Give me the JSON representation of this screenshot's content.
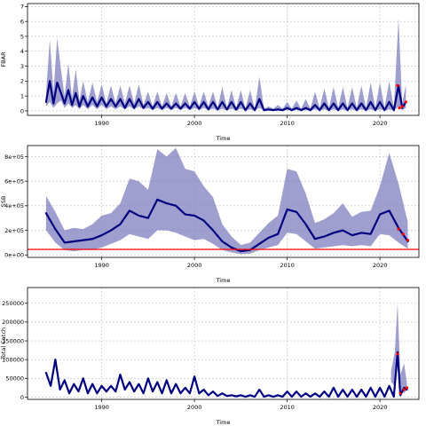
{
  "chart_data": [
    {
      "type": "area",
      "ylabel": "FBAR",
      "xlabel": "Time",
      "xlim": [
        1982.0,
        2024.2
      ],
      "ylim": [
        -0.3,
        7.2
      ],
      "x_ticks": [
        1990,
        2000,
        2010,
        2020
      ],
      "y_ticks": [
        0,
        1,
        2,
        3,
        4,
        5,
        6,
        7
      ],
      "y_tick_labels": [
        "0",
        "1",
        "2",
        "3",
        "4",
        "5",
        "6",
        "7"
      ],
      "grid": true,
      "reference_line": null,
      "series": [
        {
          "kind": "band",
          "color": "#7f7fbf",
          "x": [
            1984.0,
            1984.4,
            1984.8,
            1985.2,
            1985.6,
            1986.0,
            1986.4,
            1986.8,
            1987.2,
            1987.6,
            1988.0,
            1988.5,
            1989.0,
            1989.5,
            1990.0,
            1990.5,
            1991.0,
            1991.5,
            1992.0,
            1992.5,
            1993.0,
            1993.5,
            1994.0,
            1994.5,
            1995.0,
            1995.5,
            1996.0,
            1996.5,
            1997.0,
            1997.5,
            1998.0,
            1998.5,
            1999.0,
            1999.5,
            2000.0,
            2000.5,
            2001.0,
            2001.5,
            2002.0,
            2002.5,
            2003.0,
            2003.5,
            2004.0,
            2004.5,
            2005.0,
            2005.5,
            2006.0,
            2006.5,
            2007.0,
            2007.5,
            2008.0,
            2008.5,
            2009.0,
            2009.5,
            2010.0,
            2010.5,
            2011.0,
            2011.5,
            2012.0,
            2012.5,
            2013.0,
            2013.5,
            2014.0,
            2014.5,
            2015.0,
            2015.5,
            2016.0,
            2016.5,
            2017.0,
            2017.5,
            2018.0,
            2018.5,
            2019.0,
            2019.5,
            2020.0,
            2020.5,
            2021.0,
            2021.5,
            2022.0,
            2022.4,
            2022.8
          ],
          "lower": [
            0.3,
            0.6,
            0.2,
            0.5,
            0.7,
            0.2,
            0.5,
            0.2,
            0.4,
            0.1,
            0.4,
            0.1,
            0.4,
            0.1,
            0.4,
            0.1,
            0.3,
            0.1,
            0.3,
            0.1,
            0.3,
            0.1,
            0.3,
            0.1,
            0.2,
            0.05,
            0.2,
            0.05,
            0.2,
            0.05,
            0.2,
            0.05,
            0.2,
            0.05,
            0.2,
            0.05,
            0.2,
            0.05,
            0.15,
            0.03,
            0.15,
            0.03,
            0.15,
            0.03,
            0.15,
            0.03,
            0.1,
            0.02,
            0.2,
            0.02,
            0.02,
            0.02,
            0.03,
            0.02,
            0.05,
            0.02,
            0.05,
            0.02,
            0.05,
            0.02,
            0.1,
            0.02,
            0.1,
            0.02,
            0.1,
            0.02,
            0.1,
            0.02,
            0.1,
            0.02,
            0.1,
            0.02,
            0.1,
            0.02,
            0.1,
            0.02,
            0.1,
            0.02,
            0.3,
            0.05,
            0.2
          ],
          "upper": [
            1.2,
            4.8,
            1.3,
            4.9,
            2.8,
            1.0,
            3.2,
            0.9,
            2.8,
            0.7,
            2.0,
            0.6,
            1.9,
            0.6,
            1.8,
            0.5,
            1.7,
            0.5,
            1.7,
            0.5,
            1.7,
            0.5,
            1.8,
            0.4,
            1.3,
            0.3,
            1.3,
            0.3,
            1.2,
            0.3,
            1.2,
            0.3,
            1.2,
            0.3,
            1.3,
            0.3,
            1.3,
            0.3,
            1.3,
            0.2,
            1.6,
            0.2,
            1.4,
            0.2,
            1.4,
            0.15,
            1.4,
            0.15,
            2.3,
            0.15,
            0.3,
            0.15,
            0.4,
            0.15,
            0.6,
            0.15,
            0.7,
            0.15,
            0.8,
            0.15,
            1.3,
            0.2,
            1.5,
            0.2,
            1.6,
            0.2,
            1.6,
            0.2,
            1.6,
            0.2,
            1.7,
            0.2,
            1.9,
            0.2,
            1.9,
            0.2,
            2.0,
            0.2,
            6.2,
            0.5,
            1.8
          ]
        },
        {
          "kind": "line",
          "color": "#000080",
          "x": [
            1984.0,
            1984.4,
            1984.8,
            1985.2,
            1985.6,
            1986.0,
            1986.4,
            1986.8,
            1987.2,
            1987.6,
            1988.0,
            1988.5,
            1989.0,
            1989.5,
            1990.0,
            1990.5,
            1991.0,
            1991.5,
            1992.0,
            1992.5,
            1993.0,
            1993.5,
            1994.0,
            1994.5,
            1995.0,
            1995.5,
            1996.0,
            1996.5,
            1997.0,
            1997.5,
            1998.0,
            1998.5,
            1999.0,
            1999.5,
            2000.0,
            2000.5,
            2001.0,
            2001.5,
            2002.0,
            2002.5,
            2003.0,
            2003.5,
            2004.0,
            2004.5,
            2005.0,
            2005.5,
            2006.0,
            2006.5,
            2007.0,
            2007.5,
            2008.0,
            2008.5,
            2009.0,
            2009.5,
            2010.0,
            2010.5,
            2011.0,
            2011.5,
            2012.0,
            2012.5,
            2013.0,
            2013.5,
            2014.0,
            2014.5,
            2015.0,
            2015.5,
            2016.0,
            2016.5,
            2017.0,
            2017.5,
            2018.0,
            2018.5,
            2019.0,
            2019.5,
            2020.0,
            2020.5,
            2021.0,
            2021.5,
            2022.0,
            2022.4,
            2022.8
          ],
          "y": [
            0.6,
            2.0,
            0.5,
            1.9,
            1.2,
            0.5,
            1.4,
            0.4,
            1.2,
            0.3,
            1.0,
            0.3,
            0.9,
            0.3,
            0.9,
            0.3,
            0.8,
            0.3,
            0.8,
            0.2,
            0.8,
            0.2,
            0.8,
            0.2,
            0.6,
            0.15,
            0.6,
            0.15,
            0.5,
            0.15,
            0.5,
            0.15,
            0.5,
            0.15,
            0.6,
            0.15,
            0.6,
            0.1,
            0.6,
            0.1,
            0.6,
            0.1,
            0.6,
            0.08,
            0.6,
            0.05,
            0.5,
            0.05,
            0.8,
            0.05,
            0.1,
            0.05,
            0.1,
            0.05,
            0.2,
            0.05,
            0.2,
            0.05,
            0.2,
            0.05,
            0.4,
            0.05,
            0.5,
            0.05,
            0.5,
            0.05,
            0.5,
            0.05,
            0.5,
            0.05,
            0.5,
            0.05,
            0.6,
            0.05,
            0.6,
            0.05,
            0.6,
            0.05,
            1.7,
            0.2,
            0.6
          ]
        },
        {
          "kind": "markers",
          "color": "#ff0000",
          "x": [
            2021.9,
            2022.1,
            2022.4,
            2022.8
          ],
          "y": [
            1.7,
            0.2,
            0.3,
            0.6
          ]
        }
      ]
    },
    {
      "type": "area",
      "ylabel": "SSB",
      "xlabel": "Time",
      "xlim": [
        1982.0,
        2024.2
      ],
      "ylim": [
        -20000,
        890000
      ],
      "x_ticks": [
        1990,
        2000,
        2010,
        2020
      ],
      "y_ticks": [
        0,
        200000,
        400000,
        600000,
        800000
      ],
      "y_tick_labels": [
        "0e+00",
        "2e+05",
        "4e+05",
        "6e+05",
        "8e+05"
      ],
      "grid": true,
      "reference_line": {
        "y": 45000,
        "color": "#ff0000"
      },
      "series": [
        {
          "kind": "band",
          "color": "#7f7fbf",
          "x": [
            1984,
            1985,
            1986,
            1987,
            1988,
            1989,
            1990,
            1991,
            1992,
            1993,
            1994,
            1995,
            1996,
            1997,
            1998,
            1999,
            2000,
            2001,
            2002,
            2003,
            2004,
            2005,
            2006,
            2007,
            2008,
            2009,
            2010,
            2011,
            2012,
            2013,
            2014,
            2015,
            2016,
            2017,
            2018,
            2019,
            2020,
            2021,
            2022,
            2023
          ],
          "lower": [
            200000,
            100000,
            40000,
            30000,
            40000,
            40000,
            60000,
            90000,
            120000,
            170000,
            150000,
            130000,
            200000,
            200000,
            180000,
            150000,
            120000,
            130000,
            90000,
            40000,
            20000,
            5000,
            10000,
            40000,
            60000,
            80000,
            180000,
            170000,
            110000,
            50000,
            60000,
            70000,
            80000,
            70000,
            80000,
            70000,
            170000,
            160000,
            100000,
            50000
          ],
          "upper": [
            480000,
            350000,
            200000,
            220000,
            210000,
            250000,
            320000,
            340000,
            420000,
            620000,
            600000,
            530000,
            860000,
            800000,
            870000,
            700000,
            680000,
            560000,
            470000,
            250000,
            150000,
            80000,
            100000,
            180000,
            260000,
            320000,
            700000,
            680000,
            500000,
            260000,
            290000,
            340000,
            420000,
            310000,
            350000,
            360000,
            560000,
            830000,
            580000,
            270000
          ]
        },
        {
          "kind": "line",
          "color": "#000080",
          "x": [
            1984,
            1985,
            1986,
            1987,
            1988,
            1989,
            1990,
            1991,
            1992,
            1993,
            1994,
            1995,
            1996,
            1997,
            1998,
            1999,
            2000,
            2001,
            2002,
            2003,
            2004,
            2005,
            2006,
            2007,
            2008,
            2009,
            2010,
            2011,
            2012,
            2013,
            2014,
            2015,
            2016,
            2017,
            2018,
            2019,
            2020,
            2021,
            2022,
            2023
          ],
          "y": [
            340000,
            210000,
            100000,
            110000,
            120000,
            130000,
            160000,
            200000,
            250000,
            360000,
            320000,
            300000,
            450000,
            420000,
            400000,
            330000,
            320000,
            280000,
            200000,
            110000,
            60000,
            30000,
            40000,
            90000,
            140000,
            170000,
            370000,
            350000,
            250000,
            130000,
            150000,
            180000,
            200000,
            160000,
            180000,
            170000,
            330000,
            360000,
            220000,
            110000
          ]
        },
        {
          "kind": "markers",
          "color": "#ff0000",
          "x": [
            2022.0,
            2022.5,
            2023.0
          ],
          "y": [
            210000,
            170000,
            120000
          ]
        }
      ]
    },
    {
      "type": "area",
      "ylabel": "Total Catch",
      "xlabel": "Time",
      "xlim": [
        1982.0,
        2024.2
      ],
      "ylim": [
        -6000,
        292000
      ],
      "x_ticks": [
        1990,
        2000,
        2010,
        2020
      ],
      "y_ticks": [
        0,
        50000,
        100000,
        150000,
        200000,
        250000
      ],
      "y_tick_labels": [
        "0",
        "50000",
        "100000",
        "150000",
        "200000",
        "250000"
      ],
      "grid": true,
      "reference_line": null,
      "series": [
        {
          "kind": "band",
          "color": "#7f7fbf",
          "x": [
            2021.2,
            2021.6,
            2021.9,
            2022.2,
            2022.6,
            2022.9
          ],
          "lower": [
            40000,
            30000,
            80000,
            20000,
            10000,
            20000
          ],
          "upper": [
            70000,
            120000,
            250000,
            60000,
            90000,
            40000
          ]
        },
        {
          "kind": "line",
          "color": "#000080",
          "x": [
            1984.0,
            1984.5,
            1985.0,
            1985.5,
            1986.0,
            1986.5,
            1987.0,
            1987.5,
            1988.0,
            1988.5,
            1989.0,
            1989.5,
            1990.0,
            1990.5,
            1991.0,
            1991.5,
            1992.0,
            1992.5,
            1993.0,
            1993.5,
            1994.0,
            1994.5,
            1995.0,
            1995.5,
            1996.0,
            1996.5,
            1997.0,
            1997.5,
            1998.0,
            1998.5,
            1999.0,
            1999.5,
            2000.0,
            2000.5,
            2001.0,
            2001.5,
            2002.0,
            2002.5,
            2003.0,
            2003.5,
            2004.0,
            2004.5,
            2005.0,
            2005.5,
            2006.0,
            2006.5,
            2007.0,
            2007.5,
            2008.0,
            2008.5,
            2009.0,
            2009.5,
            2010.0,
            2010.5,
            2011.0,
            2011.5,
            2012.0,
            2012.5,
            2013.0,
            2013.5,
            2014.0,
            2014.5,
            2015.0,
            2015.5,
            2016.0,
            2016.5,
            2017.0,
            2017.5,
            2018.0,
            2018.5,
            2019.0,
            2019.5,
            2020.0,
            2020.5,
            2021.0,
            2021.5,
            2021.9,
            2022.2,
            2022.6,
            2022.9
          ],
          "y": [
            65000,
            30000,
            100000,
            20000,
            45000,
            10000,
            35000,
            15000,
            50000,
            10000,
            35000,
            10000,
            30000,
            15000,
            30000,
            15000,
            60000,
            20000,
            40000,
            15000,
            35000,
            10000,
            50000,
            15000,
            40000,
            10000,
            45000,
            10000,
            35000,
            10000,
            25000,
            10000,
            55000,
            10000,
            20000,
            5000,
            15000,
            3000,
            10000,
            3000,
            5000,
            2000,
            5000,
            1000,
            5000,
            1000,
            20000,
            1000,
            5000,
            1000,
            5000,
            1000,
            15000,
            1000,
            15000,
            1000,
            10000,
            1000,
            10000,
            1000,
            15000,
            1000,
            25000,
            1000,
            20000,
            1000,
            20000,
            1000,
            20000,
            1000,
            25000,
            1000,
            25000,
            1000,
            30000,
            1000,
            120000,
            5000,
            25000,
            20000
          ]
        },
        {
          "kind": "markers",
          "color": "#ff0000",
          "x": [
            2021.9,
            2022.2,
            2022.6,
            2022.9
          ],
          "y": [
            115000,
            10000,
            20000,
            25000
          ]
        }
      ]
    }
  ]
}
